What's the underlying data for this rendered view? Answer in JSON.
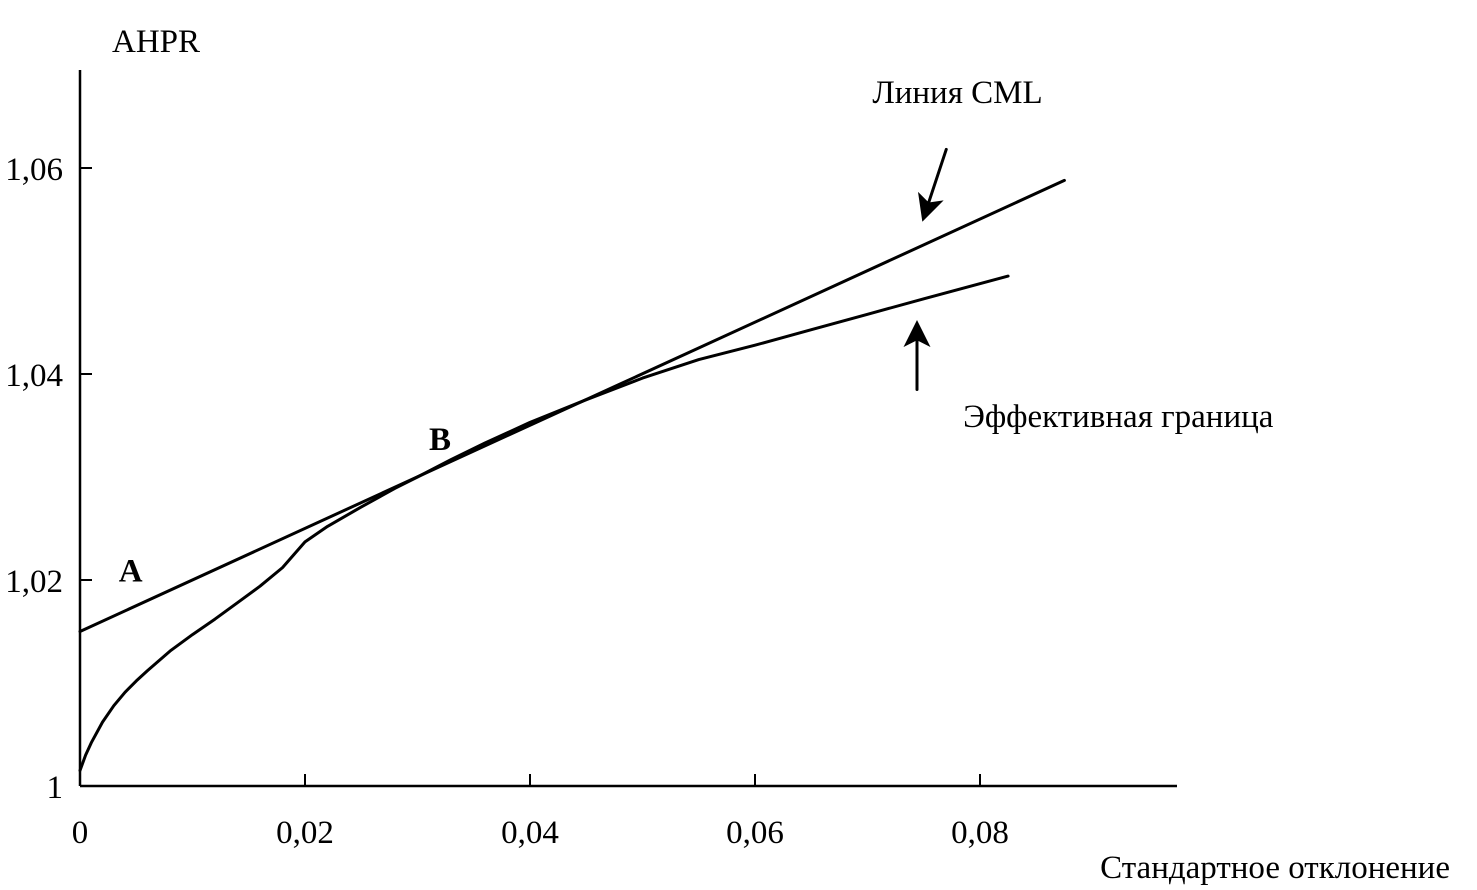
{
  "chart_data": {
    "type": "line",
    "title": "",
    "xlabel": "Стандартное отклонение",
    "ylabel": "AHPR",
    "xlim": [
      0,
      0.097
    ],
    "ylim": [
      1,
      1.07
    ],
    "x_ticks": [
      0,
      0.02,
      0.04,
      0.06,
      0.08
    ],
    "x_tick_labels": [
      "0",
      "0,02",
      "0,04",
      "0,06",
      "0,08"
    ],
    "y_ticks": [
      1,
      1.02,
      1.04,
      1.06
    ],
    "y_tick_labels": [
      "1",
      "1,02",
      "1,04",
      "1,06"
    ],
    "grid": false,
    "series": [
      {
        "name": "Линия CML",
        "x": [
          0,
          0.0875
        ],
        "y": [
          1.015,
          1.0588
        ]
      },
      {
        "name": "Эффективная граница",
        "x": [
          0,
          0.0005,
          0.001,
          0.002,
          0.003,
          0.004,
          0.005,
          0.006,
          0.008,
          0.01,
          0.012,
          0.014,
          0.016,
          0.018,
          0.02,
          0.022,
          0.025,
          0.028,
          0.03,
          0.033,
          0.036,
          0.04,
          0.045,
          0.05,
          0.055,
          0.06,
          0.065,
          0.07,
          0.075,
          0.0825
        ],
        "y": [
          1.0015,
          1.003,
          1.0042,
          1.0062,
          1.0078,
          1.0091,
          1.0102,
          1.0112,
          1.0131,
          1.0147,
          1.0162,
          1.0178,
          1.0194,
          1.0212,
          1.0237,
          1.0252,
          1.0271,
          1.0289,
          1.03,
          1.0317,
          1.0333,
          1.0353,
          1.0375,
          1.0396,
          1.0414,
          1.0428,
          1.0443,
          1.0458,
          1.0473,
          1.0495
        ]
      }
    ],
    "annotations": [
      {
        "text": "A",
        "x": 0.0045,
        "y": 1.021
      },
      {
        "text": "B",
        "x": 0.032,
        "y": 1.0338
      },
      {
        "text": "Линия CML",
        "x": 0.078,
        "y": 1.0675
      },
      {
        "text": "Эффективная граница",
        "x": 0.0785,
        "y": 1.036
      }
    ],
    "arrows": [
      {
        "from_x": 0.077,
        "from_y": 1.0618,
        "to_x": 0.075,
        "to_y": 1.0552
      },
      {
        "from_x": 0.0744,
        "from_y": 1.0385,
        "to_x": 0.0744,
        "to_y": 1.0448
      }
    ]
  }
}
